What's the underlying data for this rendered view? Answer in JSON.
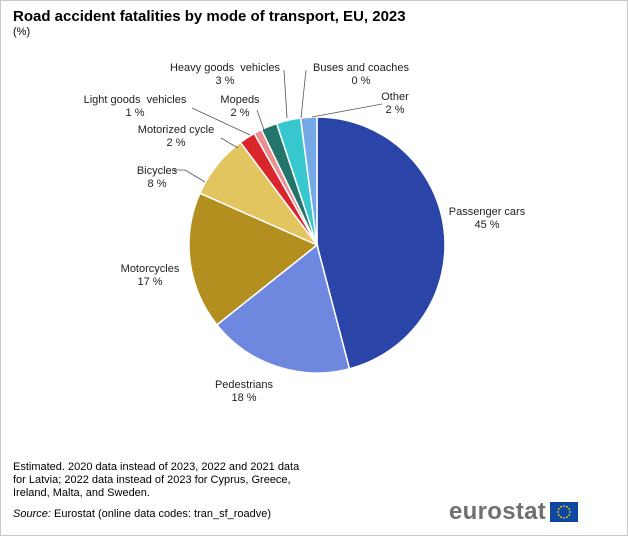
{
  "header": {
    "title": "Road accident fatalities by mode of transport, EU, 2023",
    "subtitle": "(%)"
  },
  "chart_data": {
    "type": "pie",
    "title": "Road accident fatalities by mode of transport, EU, 2023",
    "unit": "(%)",
    "slices": [
      {
        "name": "Passenger cars",
        "value": 45,
        "label": "45 %",
        "color": "#2b44a8"
      },
      {
        "name": "Pedestrians",
        "value": 18,
        "label": "18 %",
        "color": "#6f88df"
      },
      {
        "name": "Motorcycles",
        "value": 17,
        "label": "17 %",
        "color": "#b38f1f"
      },
      {
        "name": "Bicycles",
        "value": 8,
        "label": "8 %",
        "color": "#e2c55e"
      },
      {
        "name": "Motorized cycle",
        "value": 2,
        "label": "2 %",
        "color": "#d9262c"
      },
      {
        "name": "Light goods  vehicles",
        "value": 1,
        "label": "1 %",
        "color": "#ec8f92"
      },
      {
        "name": "Mopeds",
        "value": 2,
        "label": "2 %",
        "color": "#23746a"
      },
      {
        "name": "Heavy goods  vehicles",
        "value": 3,
        "label": "3 %",
        "color": "#37c8cf"
      },
      {
        "name": "Buses and coaches",
        "value": 0,
        "label": "0 %",
        "color": "#a9e4ea"
      },
      {
        "name": "Other",
        "value": 2,
        "label": "2 %",
        "color": "#75a8e6"
      }
    ]
  },
  "footnote": {
    "lines": [
      "Estimated. 2020 data instead of 2023, 2022 and 2021 data",
      "for Latvia; 2022 data instead of 2023 for Cyprus, Greece,",
      "Ireland, Malta, and Sweden."
    ]
  },
  "source": {
    "label": "Source:",
    "text": "Eurostat (online data codes: tran_sf_roadve)"
  },
  "logo": {
    "text": "eurostat",
    "flag_color": "#0e47a1",
    "star_color": "#ffdd00"
  }
}
